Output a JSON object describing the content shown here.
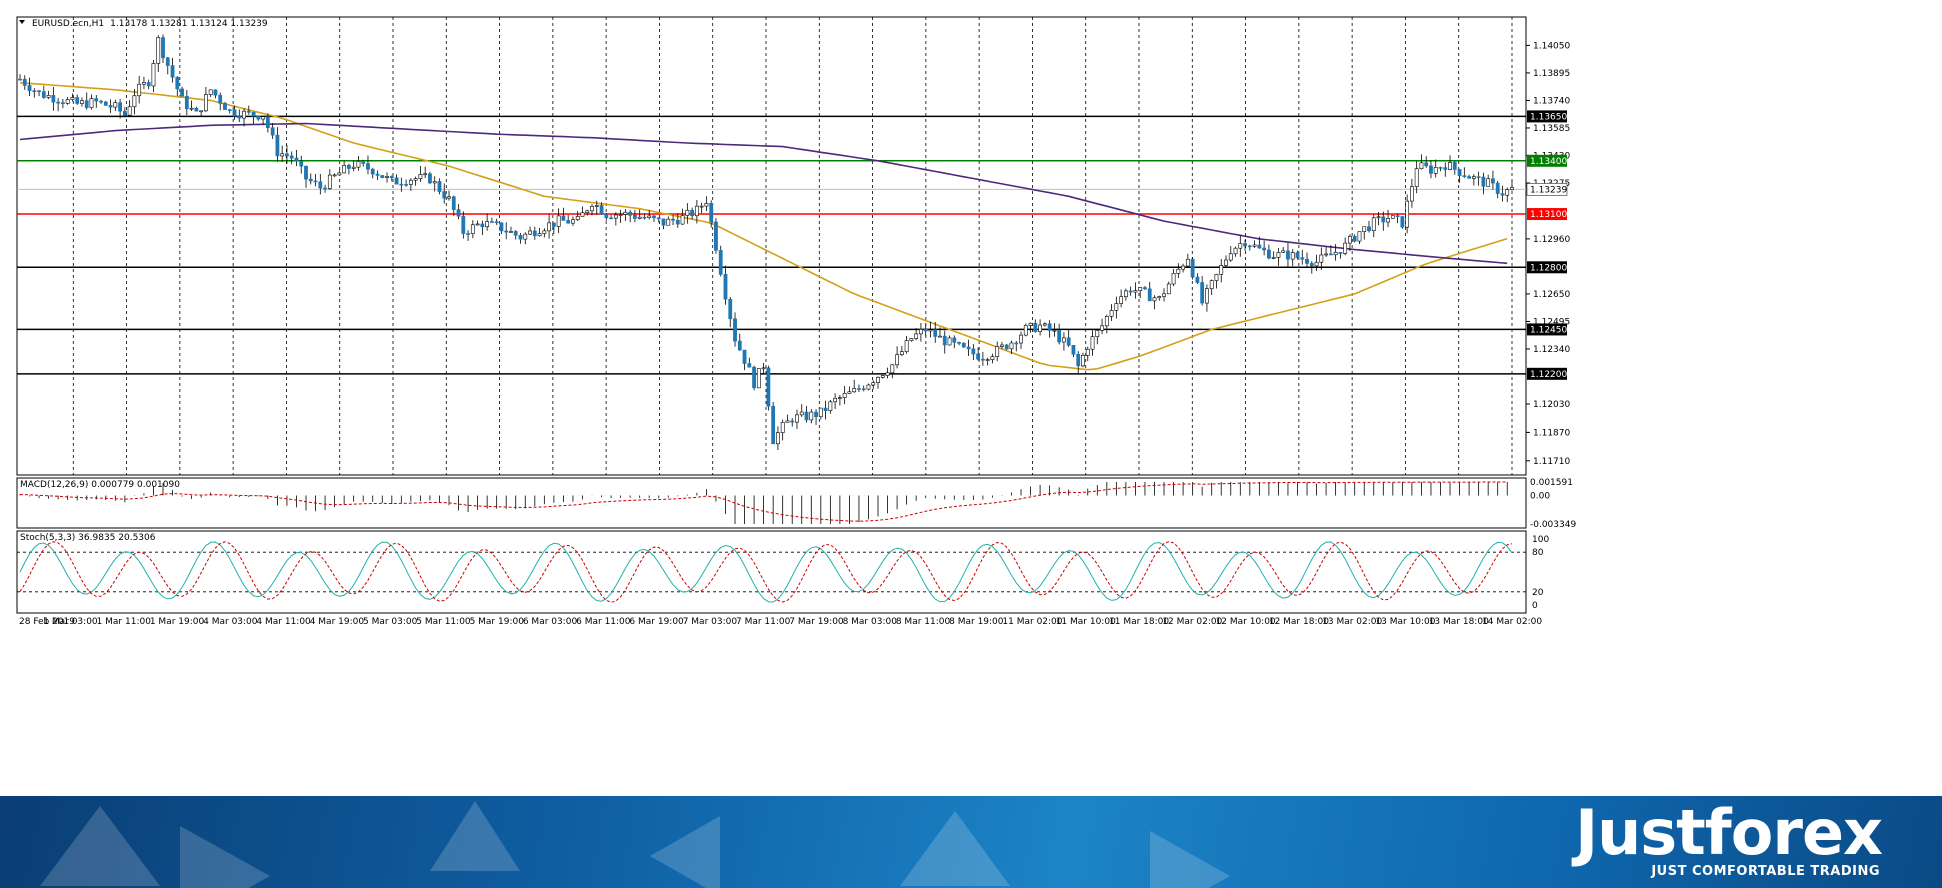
{
  "header": {
    "symbol": "EURUSD.ecn,H1",
    "ohlc": "1.13178 1.13281 1.13124 1.13239"
  },
  "chart_data": [
    {
      "type": "candlestick",
      "title": "EURUSD.ecn,H1  1.13178 1.13281 1.13124 1.13239",
      "ylim": [
        1.1163,
        1.1421
      ],
      "price_ticks": [
        "1.14050",
        "1.13895",
        "1.13740",
        "1.13585",
        "1.13430",
        "1.13275",
        "1.12960",
        "1.12650",
        "1.12495",
        "1.12340",
        "1.12030",
        "1.11870",
        "1.11710"
      ],
      "horizontal_levels": [
        {
          "value": 1.1365,
          "label": "1.13650",
          "color": "#000000"
        },
        {
          "value": 1.134,
          "label": "1.13400",
          "color": "#008000"
        },
        {
          "value": 1.131,
          "label": "1.13100",
          "color": "#ff0000"
        },
        {
          "value": 1.128,
          "label": "1.12800",
          "color": "#000000"
        },
        {
          "value": 1.1245,
          "label": "1.12450",
          "color": "#000000"
        },
        {
          "value": 1.122,
          "label": "1.12200",
          "color": "#000000"
        }
      ],
      "current_price": {
        "value": 1.13239,
        "label": "1.13239"
      },
      "time_labels": [
        "28 Feb 2019",
        "1 Mar 03:00",
        "1 Mar 11:00",
        "1 Mar 19:00",
        "4 Mar 03:00",
        "4 Mar 11:00",
        "4 Mar 19:00",
        "5 Mar 03:00",
        "5 Mar 11:00",
        "5 Mar 19:00",
        "6 Mar 03:00",
        "6 Mar 11:00",
        "6 Mar 19:00",
        "7 Mar 03:00",
        "7 Mar 11:00",
        "7 Mar 19:00",
        "8 Mar 03:00",
        "8 Mar 11:00",
        "8 Mar 19:00",
        "11 Mar 02:00",
        "11 Mar 10:00",
        "11 Mar 18:00",
        "12 Mar 02:00",
        "12 Mar 10:00",
        "12 Mar 18:00",
        "13 Mar 02:00",
        "13 Mar 10:00",
        "13 Mar 18:00",
        "14 Mar 02:00"
      ],
      "price_path": [
        [
          0,
          1.1386
        ],
        [
          4,
          1.1378
        ],
        [
          8,
          1.1375
        ],
        [
          12,
          1.1372
        ],
        [
          16,
          1.1373
        ],
        [
          20,
          1.137
        ],
        [
          22,
          1.1366
        ],
        [
          24,
          1.1378
        ],
        [
          27,
          1.1385
        ],
        [
          29,
          1.1408
        ],
        [
          31,
          1.1394
        ],
        [
          34,
          1.1374
        ],
        [
          37,
          1.1366
        ],
        [
          40,
          1.138
        ],
        [
          44,
          1.1368
        ],
        [
          48,
          1.1366
        ],
        [
          51,
          1.1366
        ],
        [
          54,
          1.1345
        ],
        [
          57,
          1.1342
        ],
        [
          60,
          1.133
        ],
        [
          63,
          1.1325
        ],
        [
          67,
          1.1333
        ],
        [
          70,
          1.1338
        ],
        [
          74,
          1.1335
        ],
        [
          78,
          1.1328
        ],
        [
          82,
          1.133
        ],
        [
          86,
          1.133
        ],
        [
          90,
          1.1318
        ],
        [
          93,
          1.13
        ],
        [
          97,
          1.1305
        ],
        [
          101,
          1.1302
        ],
        [
          105,
          1.1297
        ],
        [
          109,
          1.1302
        ],
        [
          113,
          1.1306
        ],
        [
          117,
          1.1306
        ],
        [
          120,
          1.1317
        ],
        [
          123,
          1.131
        ],
        [
          127,
          1.131
        ],
        [
          131,
          1.1308
        ],
        [
          135,
          1.1305
        ],
        [
          139,
          1.1308
        ],
        [
          142,
          1.1312
        ],
        [
          144,
          1.1318
        ],
        [
          146,
          1.1292
        ],
        [
          148,
          1.1265
        ],
        [
          150,
          1.124
        ],
        [
          152,
          1.1228
        ],
        [
          154,
          1.1215
        ],
        [
          156,
          1.1225
        ],
        [
          158,
          1.1183
        ],
        [
          160,
          1.119
        ],
        [
          162,
          1.1195
        ],
        [
          165,
          1.1196
        ],
        [
          168,
          1.1198
        ],
        [
          171,
          1.1205
        ],
        [
          175,
          1.121
        ],
        [
          179,
          1.1217
        ],
        [
          183,
          1.1225
        ],
        [
          187,
          1.124
        ],
        [
          190,
          1.1245
        ],
        [
          193,
          1.124
        ],
        [
          196,
          1.1236
        ],
        [
          199,
          1.1232
        ],
        [
          202,
          1.123
        ],
        [
          205,
          1.1233
        ],
        [
          208,
          1.1238
        ],
        [
          211,
          1.1245
        ],
        [
          214,
          1.1247
        ],
        [
          217,
          1.1243
        ],
        [
          220,
          1.1235
        ],
        [
          222,
          1.1224
        ],
        [
          224,
          1.1236
        ],
        [
          227,
          1.1247
        ],
        [
          230,
          1.1262
        ],
        [
          233,
          1.1268
        ],
        [
          236,
          1.1265
        ],
        [
          239,
          1.1262
        ],
        [
          242,
          1.1275
        ],
        [
          245,
          1.1286
        ],
        [
          248,
          1.126
        ],
        [
          251,
          1.1275
        ],
        [
          254,
          1.129
        ],
        [
          257,
          1.1295
        ],
        [
          260,
          1.129
        ],
        [
          263,
          1.1287
        ],
        [
          266,
          1.1287
        ],
        [
          269,
          1.1285
        ],
        [
          272,
          1.1283
        ],
        [
          275,
          1.1287
        ],
        [
          278,
          1.1292
        ],
        [
          281,
          1.13
        ],
        [
          284,
          1.1305
        ],
        [
          287,
          1.1308
        ],
        [
          290,
          1.1305
        ],
        [
          293,
          1.1337
        ],
        [
          296,
          1.1335
        ],
        [
          299,
          1.1338
        ],
        [
          302,
          1.1334
        ],
        [
          305,
          1.133
        ],
        [
          308,
          1.1327
        ],
        [
          311,
          1.1322
        ],
        [
          313,
          1.1324
        ]
      ],
      "moving_averages": [
        {
          "color": "#d4a017",
          "points": [
            [
              0,
              1.1384
            ],
            [
              20,
              1.138
            ],
            [
              40,
              1.1374
            ],
            [
              55,
              1.1364
            ],
            [
              70,
              1.135
            ],
            [
              90,
              1.1337
            ],
            [
              110,
              1.132
            ],
            [
              130,
              1.1313
            ],
            [
              145,
              1.1305
            ],
            [
              160,
              1.1285
            ],
            [
              175,
              1.1265
            ],
            [
              190,
              1.125
            ],
            [
              205,
              1.1235
            ],
            [
              215,
              1.1225
            ],
            [
              225,
              1.1222
            ],
            [
              235,
              1.123
            ],
            [
              250,
              1.1245
            ],
            [
              265,
              1.1255
            ],
            [
              280,
              1.1265
            ],
            [
              295,
              1.1282
            ],
            [
              313,
              1.1297
            ]
          ]
        },
        {
          "color": "#4b2a7b",
          "points": [
            [
              0,
              1.1352
            ],
            [
              20,
              1.1357
            ],
            [
              40,
              1.136
            ],
            [
              60,
              1.1361
            ],
            [
              80,
              1.1358
            ],
            [
              100,
              1.1355
            ],
            [
              120,
              1.1353
            ],
            [
              140,
              1.135
            ],
            [
              160,
              1.1348
            ],
            [
              180,
              1.134
            ],
            [
              200,
              1.133
            ],
            [
              220,
              1.132
            ],
            [
              240,
              1.1306
            ],
            [
              260,
              1.1296
            ],
            [
              280,
              1.129
            ],
            [
              300,
              1.1285
            ],
            [
              313,
              1.1282
            ]
          ]
        }
      ]
    },
    {
      "type": "histogram",
      "title": "MACD(12,26,9) 0.000779 0.001090",
      "ylim": [
        -0.003349,
        0.001591
      ],
      "ticks": [
        "0.001591",
        "0.00",
        "-0.003349"
      ]
    },
    {
      "type": "line",
      "title": "Stoch(5,3,3) 36.9835 20.5306",
      "ylim": [
        0,
        100
      ],
      "ticks": [
        "100",
        "80",
        "20",
        "0"
      ],
      "levels": [
        80,
        20
      ],
      "series": [
        {
          "color": "#20b2aa",
          "period": 18,
          "phase": 0.0
        },
        {
          "color": "#cc0000",
          "period": 18,
          "phase": 0.9,
          "dashed": true
        }
      ]
    }
  ],
  "branding": {
    "name": "Justforex",
    "tagline": "JUST COMFORTABLE TRADING"
  },
  "colors": {
    "bull": "#ffffff",
    "bear": "#1f77b4",
    "grid": "#000000"
  }
}
